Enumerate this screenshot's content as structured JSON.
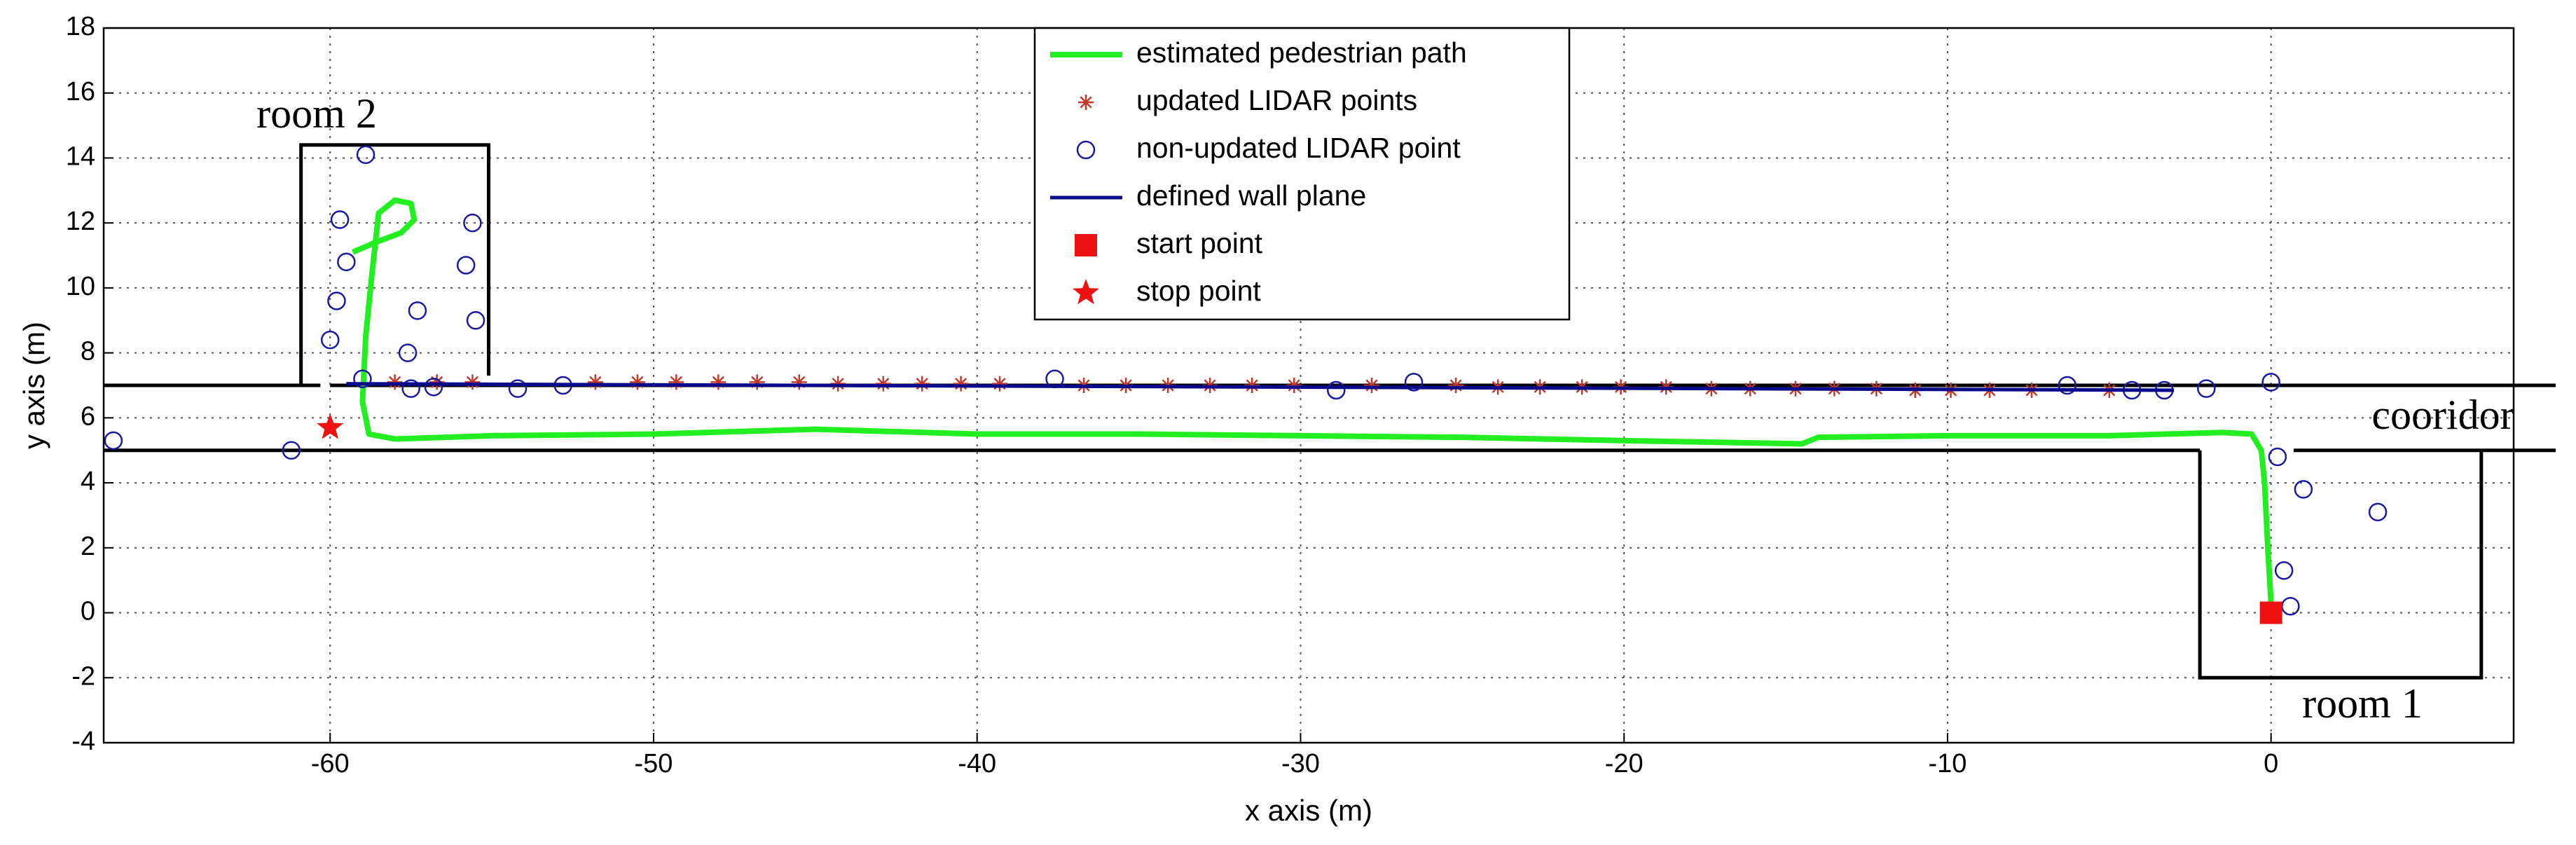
{
  "chart_data": {
    "type": "scatter",
    "xlabel": "x axis (m)",
    "ylabel": "y axis (m)",
    "xlim": [
      -67,
      7.5
    ],
    "ylim": [
      -4,
      18
    ],
    "xticks": [
      -60,
      -50,
      -40,
      -30,
      -20,
      -10,
      0
    ],
    "yticks": [
      -4,
      -2,
      0,
      2,
      4,
      6,
      8,
      10,
      12,
      14,
      16,
      18
    ],
    "grid": true,
    "legend": "upper center",
    "series": [
      {
        "name": "estimated pedestrian path",
        "color": "#22ee22",
        "marker": "line",
        "x": [
          0,
          -0.1,
          -0.2,
          -0.3,
          -0.6,
          -1.5,
          -5,
          -10,
          -14,
          -14.5,
          -20,
          -25,
          -30,
          -35,
          -40,
          -45,
          -50,
          -55,
          -58,
          -58.8,
          -59,
          -58.9,
          -58.7,
          -58.5,
          -58,
          -57.5,
          -57.4,
          -57.8,
          -58.6,
          -59.3
        ],
        "values": [
          0.3,
          2,
          4,
          5,
          5.5,
          5.55,
          5.45,
          5.45,
          5.4,
          5.2,
          5.3,
          5.4,
          5.45,
          5.5,
          5.5,
          5.65,
          5.5,
          5.45,
          5.35,
          5.5,
          6.5,
          8.5,
          10.5,
          12.3,
          12.7,
          12.6,
          12.1,
          11.7,
          11.4,
          11.1
        ]
      },
      {
        "name": "updated  LIDAR points",
        "color": "#c0392b",
        "marker": "asterisk",
        "x": [
          -58.0,
          -56.7,
          -55.6,
          -51.8,
          -50.5,
          -49.3,
          -48.0,
          -46.8,
          -45.5,
          -44.3,
          -42.9,
          -41.7,
          -40.5,
          -39.3,
          -36.7,
          -35.4,
          -34.1,
          -32.8,
          -31.5,
          -30.2,
          -27.8,
          -25.2,
          -23.9,
          -22.6,
          -21.3,
          -20.1,
          -18.7,
          -17.3,
          -16.1,
          -14.7,
          -13.5,
          -12.2,
          -11.0,
          -9.9,
          -8.7,
          -7.4,
          -5.0
        ],
        "values": [
          7.1,
          7.1,
          7.1,
          7.1,
          7.1,
          7.1,
          7.1,
          7.1,
          7.1,
          7.05,
          7.05,
          7.05,
          7.05,
          7.05,
          7.0,
          7.0,
          7.0,
          7.0,
          7.0,
          7.0,
          7.0,
          7.0,
          6.95,
          6.95,
          6.95,
          6.95,
          6.95,
          6.9,
          6.9,
          6.9,
          6.9,
          6.9,
          6.85,
          6.85,
          6.85,
          6.85,
          6.85
        ]
      },
      {
        "name": "non-updated LIDAR point",
        "color": "#1a1aa0",
        "marker": "circle",
        "x": [
          -66.7,
          -61.2,
          -59.0,
          -60.0,
          -59.8,
          -59.5,
          -59.7,
          -58.9,
          -57.6,
          -57.3,
          -57.5,
          -56.8,
          -55.8,
          -55.6,
          -55.5,
          -54.2,
          -52.8,
          -37.6,
          -28.9,
          -26.5,
          -6.3,
          -4.3,
          -3.3,
          -2.0,
          0,
          0.2,
          1.0,
          3.3,
          0.4,
          0.6
        ],
        "values": [
          5.3,
          5.0,
          7.2,
          8.4,
          9.6,
          10.8,
          12.1,
          14.1,
          8.0,
          9.3,
          6.9,
          6.95,
          10.7,
          12.0,
          9.0,
          6.9,
          7.0,
          7.2,
          6.85,
          7.1,
          7.0,
          6.85,
          6.85,
          6.9,
          7.1,
          4.8,
          3.8,
          3.1,
          1.3,
          0.2
        ]
      },
      {
        "name": "defined wall plane",
        "color": "#0a0a8c",
        "marker": "line",
        "x": [
          -59.5,
          -3
        ],
        "values": [
          7.05,
          6.85
        ]
      },
      {
        "name": "start point",
        "color": "#ee1111",
        "marker": "square",
        "x": [
          0
        ],
        "values": [
          0
        ]
      },
      {
        "name": "stop point",
        "color": "#ee1111",
        "marker": "star",
        "x": [
          -60
        ],
        "values": [
          5.7
        ]
      }
    ],
    "outlines": [
      {
        "x": [
          -67,
          -60.3
        ],
        "y": [
          7,
          7
        ]
      },
      {
        "x": [
          -60.9,
          -60.9,
          -55.1,
          -55.1
        ],
        "y": [
          7,
          14.4,
          14.4,
          7.3
        ]
      },
      {
        "x": [
          -60,
          8.8
        ],
        "y": [
          7,
          7
        ]
      },
      {
        "x": [
          -67,
          -2.2
        ],
        "y": [
          5,
          5
        ]
      },
      {
        "x": [
          -2.2,
          -2.2,
          6.5,
          6.5
        ],
        "y": [
          5,
          -2,
          -2,
          5
        ]
      },
      {
        "x": [
          0.7,
          8.8
        ],
        "y": [
          5,
          5
        ]
      }
    ],
    "annotations": [
      "room 2",
      "cooridor",
      "room 1"
    ]
  }
}
